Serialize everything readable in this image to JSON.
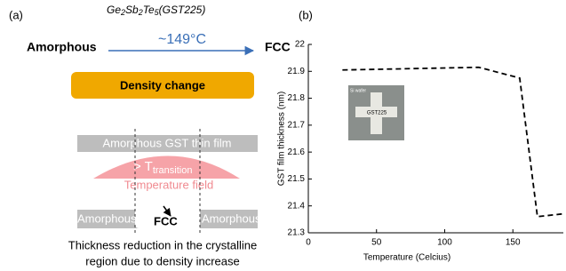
{
  "panel_a": {
    "label": "(a)",
    "formula": [
      "Ge",
      "2",
      "Sb",
      "2",
      "Te",
      "5",
      "(GST225)"
    ],
    "from_phase": "Amorphous",
    "temperature": "~149°C",
    "to_phase": "FCC",
    "box": "Density change",
    "film": "Amorphous GST thin film",
    "threshold": "> T",
    "threshold_sub": "transition",
    "field": "Temperature field",
    "bottom_left": "Amorphous",
    "bottom_mid": "FCC",
    "bottom_right": "Amorphous",
    "caption": [
      "Thickness reduction in the crystalline",
      "region due to density increase"
    ]
  },
  "chart_data": {
    "type": "line",
    "panel_label": "(b)",
    "x_label": "Temperature (Celcius)",
    "y_label": "GST film thickness (nm)",
    "inset": {
      "wafer": "Si wafer",
      "sample": "GST225"
    },
    "x": [
      25,
      75,
      125,
      155,
      168,
      186
    ],
    "series": [
      {
        "color": "#000000",
        "values": [
          21.905,
          21.91,
          21.915,
          21.875,
          21.36,
          21.37
        ]
      }
    ],
    "xlim": [
      0,
      187
    ],
    "xticks": [
      0,
      50,
      100,
      150
    ],
    "ylim": [
      21.3,
      22
    ],
    "yticks": [
      21.3,
      21.4,
      21.5,
      21.6,
      21.7,
      21.8,
      21.9,
      22
    ]
  }
}
